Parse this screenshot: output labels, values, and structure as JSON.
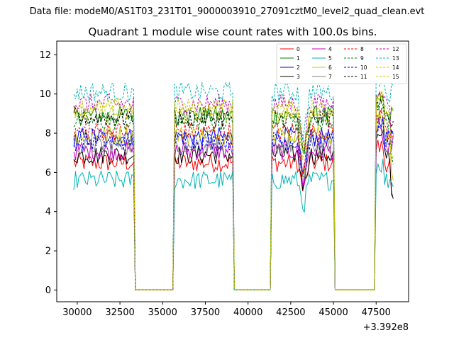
{
  "chart_data": {
    "type": "line",
    "suptitle": "Data file: modeM0/AS1T03_231T01_9000003910_27091cztM0_level2_quad_clean.evt",
    "title": "Quadrant 1 module wise count rates with 100.0s bins.",
    "xlabel": "",
    "ylabel": "",
    "x_offset_label": "+3.392e8",
    "xlim": [
      28800,
      49400
    ],
    "ylim": [
      -0.6,
      12.7
    ],
    "x_ticks": [
      30000,
      32500,
      35000,
      37500,
      40000,
      42500,
      45000,
      47500
    ],
    "x_tick_labels": [
      "30000",
      "32500",
      "35000",
      "37500",
      "40000",
      "42500",
      "45000",
      "47500"
    ],
    "y_ticks": [
      0,
      2,
      4,
      6,
      8,
      10,
      12
    ],
    "y_tick_labels": [
      "0",
      "2",
      "4",
      "6",
      "8",
      "10",
      "12"
    ],
    "legend_position": "top-right",
    "gti_segments": [
      [
        29800,
        33300
      ],
      [
        35700,
        39100
      ],
      [
        41400,
        45000
      ],
      [
        47500,
        48500
      ]
    ],
    "gap_segments": [
      [
        33500,
        35600
      ],
      [
        39300,
        41300
      ],
      [
        45150,
        47300
      ]
    ],
    "series": [
      {
        "name": "0",
        "color": "#ff0000",
        "dash": "solid",
        "mean": 6.5
      },
      {
        "name": "1",
        "color": "#008000",
        "dash": "solid",
        "mean": 8.9
      },
      {
        "name": "2",
        "color": "#0000ff",
        "dash": "solid",
        "mean": 7.8
      },
      {
        "name": "3",
        "color": "#000000",
        "dash": "solid",
        "mean": 6.9
      },
      {
        "name": "4",
        "color": "#c000c0",
        "dash": "solid",
        "mean": 7.1
      },
      {
        "name": "5",
        "color": "#00b4b4",
        "dash": "solid",
        "mean": 5.6
      },
      {
        "name": "6",
        "color": "#c8c800",
        "dash": "solid",
        "mean": 7.9
      },
      {
        "name": "7",
        "color": "#808080",
        "dash": "solid",
        "mean": 7.4
      },
      {
        "name": "8",
        "color": "#ff0000",
        "dash": "dashed",
        "mean": 8.1
      },
      {
        "name": "9",
        "color": "#008000",
        "dash": "dashed",
        "mean": 8.6
      },
      {
        "name": "10",
        "color": "#0000ff",
        "dash": "dashed",
        "mean": 7.6
      },
      {
        "name": "11",
        "color": "#000000",
        "dash": "dashed",
        "mean": 8.8
      },
      {
        "name": "12",
        "color": "#c000c0",
        "dash": "dashed",
        "mean": 9.5
      },
      {
        "name": "13",
        "color": "#00b4b4",
        "dash": "dashed",
        "mean": 10.1
      },
      {
        "name": "14",
        "color": "#c8c800",
        "dash": "dashed",
        "mean": 9.3
      },
      {
        "name": "15",
        "color": "#c8c800",
        "dash": "dashed",
        "mean": 9.0
      }
    ]
  }
}
